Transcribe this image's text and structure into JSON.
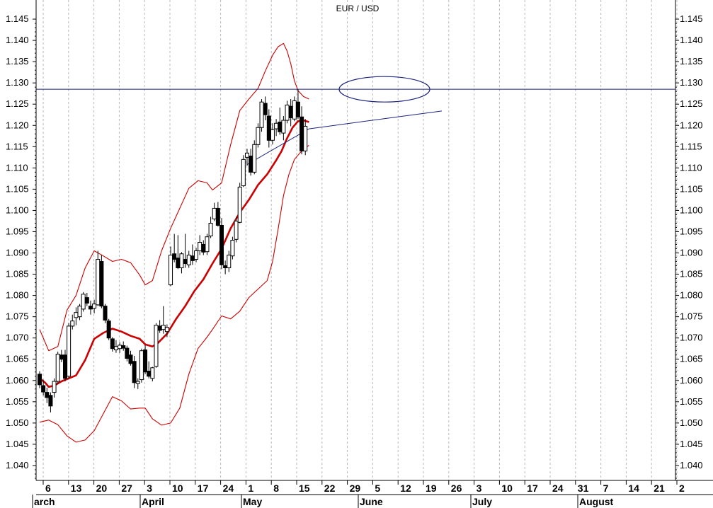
{
  "chart_data": {
    "type": "candlestick",
    "title": "EUR / USD",
    "ylim": [
      1.0365,
      1.1495
    ],
    "y_ticks": [
      "1.040",
      "1.045",
      "1.050",
      "1.055",
      "1.060",
      "1.065",
      "1.070",
      "1.075",
      "1.080",
      "1.085",
      "1.090",
      "1.095",
      "1.100",
      "1.105",
      "1.110",
      "1.115",
      "1.120",
      "1.125",
      "1.130",
      "1.135",
      "1.140",
      "1.145"
    ],
    "x_tick_labels": [
      "6",
      "13",
      "20",
      "27",
      "3",
      "10",
      "17",
      "24",
      "1",
      "8",
      "15",
      "22",
      "29",
      "5",
      "12",
      "19",
      "26",
      "3",
      "10",
      "17",
      "24",
      "31",
      "7",
      "14",
      "21",
      "2"
    ],
    "month_labels": [
      "arch",
      "April",
      "May",
      "June",
      "July",
      "August"
    ],
    "grid": "vertical dotted, weekly",
    "resistance_level": 1.1285,
    "series": [
      {
        "name": "",
        "role": "moving-average",
        "color": "#cc0000",
        "points": [
          [
            0,
            1.0605
          ],
          [
            3,
            1.0595
          ],
          [
            5,
            1.0585
          ],
          [
            8,
            1.0588
          ],
          [
            12,
            1.0598
          ],
          [
            20,
            1.0612
          ],
          [
            25,
            1.0648
          ],
          [
            30,
            1.0698
          ],
          [
            35,
            1.0712
          ],
          [
            40,
            1.0722
          ],
          [
            45,
            1.0715
          ],
          [
            50,
            1.0705
          ],
          [
            55,
            1.0698
          ],
          [
            58,
            1.0685
          ],
          [
            62,
            1.068
          ],
          [
            65,
            1.0688
          ],
          [
            70,
            1.071
          ],
          [
            75,
            1.0745
          ],
          [
            80,
            1.0775
          ],
          [
            85,
            1.081
          ],
          [
            90,
            1.0838
          ],
          [
            95,
            1.0875
          ],
          [
            100,
            1.091
          ],
          [
            105,
            1.0958
          ],
          [
            110,
            1.0995
          ],
          [
            115,
            1.1025
          ],
          [
            120,
            1.106
          ],
          [
            125,
            1.1085
          ],
          [
            130,
            1.1118
          ],
          [
            133,
            1.114
          ],
          [
            136,
            1.117
          ],
          [
            139,
            1.1195
          ],
          [
            142,
            1.121
          ],
          [
            145,
            1.1212
          ],
          [
            148,
            1.1208
          ]
        ]
      },
      {
        "name": "",
        "role": "bollinger-upper",
        "color": "#cc0000",
        "points": [
          [
            0,
            1.072
          ],
          [
            5,
            1.067
          ],
          [
            10,
            1.068
          ],
          [
            15,
            1.0765
          ],
          [
            20,
            1.08
          ],
          [
            25,
            1.0865
          ],
          [
            30,
            1.0905
          ],
          [
            35,
            1.0893
          ],
          [
            40,
            1.088
          ],
          [
            45,
            1.0885
          ],
          [
            50,
            1.0877
          ],
          [
            55,
            1.0848
          ],
          [
            58,
            1.0825
          ],
          [
            62,
            1.0835
          ],
          [
            67,
            1.0905
          ],
          [
            72,
            1.0958
          ],
          [
            77,
            1.1005
          ],
          [
            82,
            1.1052
          ],
          [
            87,
            1.107
          ],
          [
            92,
            1.1065
          ],
          [
            95,
            1.1048
          ],
          [
            100,
            1.1065
          ],
          [
            105,
            1.1155
          ],
          [
            110,
            1.1235
          ],
          [
            115,
            1.1262
          ],
          [
            120,
            1.1287
          ],
          [
            124,
            1.1328
          ],
          [
            128,
            1.1365
          ],
          [
            131,
            1.1385
          ],
          [
            134,
            1.1393
          ],
          [
            136,
            1.1375
          ],
          [
            138,
            1.1345
          ],
          [
            140,
            1.1305
          ],
          [
            142,
            1.1282
          ],
          [
            145,
            1.1268
          ],
          [
            148,
            1.1262
          ]
        ]
      },
      {
        "name": "",
        "role": "bollinger-lower",
        "color": "#cc0000",
        "points": [
          [
            0,
            1.0502
          ],
          [
            5,
            1.0507
          ],
          [
            10,
            1.0496
          ],
          [
            15,
            1.047
          ],
          [
            20,
            1.0455
          ],
          [
            25,
            1.046
          ],
          [
            30,
            1.0482
          ],
          [
            35,
            1.0522
          ],
          [
            40,
            1.0562
          ],
          [
            45,
            1.0552
          ],
          [
            50,
            1.0533
          ],
          [
            55,
            1.0535
          ],
          [
            58,
            1.0535
          ],
          [
            62,
            1.051
          ],
          [
            67,
            1.0495
          ],
          [
            72,
            1.05
          ],
          [
            77,
            1.0535
          ],
          [
            82,
            1.0615
          ],
          [
            87,
            1.0675
          ],
          [
            92,
            1.0702
          ],
          [
            95,
            1.072
          ],
          [
            100,
            1.0752
          ],
          [
            105,
            1.0745
          ],
          [
            110,
            1.0763
          ],
          [
            115,
            1.0795
          ],
          [
            120,
            1.0815
          ],
          [
            125,
            1.0835
          ],
          [
            128,
            1.088
          ],
          [
            131,
            1.0955
          ],
          [
            134,
            1.1035
          ],
          [
            137,
            1.1085
          ],
          [
            140,
            1.112
          ],
          [
            143,
            1.1135
          ],
          [
            146,
            1.1148
          ],
          [
            148,
            1.1153
          ]
        ]
      },
      {
        "name": "",
        "role": "price-candles",
        "candles": [
          [
            0,
            1.0615,
            1.0622,
            1.0582,
            1.059
          ],
          [
            2,
            1.0588,
            1.0602,
            1.0565,
            1.0573
          ],
          [
            4,
            1.0572,
            1.0583,
            1.0547,
            1.056
          ],
          [
            6,
            1.0565,
            1.0572,
            1.0525,
            1.054
          ],
          [
            8,
            1.0572,
            1.0605,
            1.056,
            1.0598
          ],
          [
            10,
            1.0598,
            1.0668,
            1.0592,
            1.0662
          ],
          [
            12,
            1.066,
            1.0672,
            1.0643,
            1.065
          ],
          [
            14,
            1.066,
            1.0672,
            1.0598,
            1.0605
          ],
          [
            16,
            1.061,
            1.0735,
            1.0605,
            1.0728
          ],
          [
            18,
            1.0728,
            1.0755,
            1.072,
            1.074
          ],
          [
            20,
            1.0748,
            1.0772,
            1.073,
            1.076
          ],
          [
            22,
            1.075,
            1.078,
            1.0742,
            1.0775
          ],
          [
            24,
            1.0768,
            1.0808,
            1.0762,
            1.0803
          ],
          [
            26,
            1.0795,
            1.0806,
            1.0775,
            1.0782
          ],
          [
            28,
            1.0775,
            1.0788,
            1.0755,
            1.0768
          ],
          [
            30,
            1.077,
            1.079,
            1.0758,
            1.078
          ],
          [
            32,
            1.0778,
            1.0905,
            1.0775,
            1.0885
          ],
          [
            34,
            1.088,
            1.0895,
            1.077,
            1.0775
          ],
          [
            36,
            1.0775,
            1.078,
            1.0735,
            1.0742
          ],
          [
            38,
            1.074,
            1.0745,
            1.0695,
            1.07
          ],
          [
            40,
            1.0698,
            1.0702,
            1.0668,
            1.0675
          ],
          [
            42,
            1.0672,
            1.0695,
            1.0665,
            1.068
          ],
          [
            44,
            1.0675,
            1.069,
            1.0665,
            1.0683
          ],
          [
            46,
            1.0682,
            1.0692,
            1.067,
            1.0676
          ],
          [
            48,
            1.0676,
            1.0682,
            1.0645,
            1.0652
          ],
          [
            50,
            1.066,
            1.067,
            1.0635,
            1.064
          ],
          [
            52,
            1.0645,
            1.0658,
            1.0582,
            1.0595
          ],
          [
            54,
            1.0593,
            1.0605,
            1.058,
            1.0598
          ],
          [
            56,
            1.0602,
            1.0675,
            1.0595,
            1.067
          ],
          [
            58,
            1.0672,
            1.0683,
            1.0615,
            1.062
          ],
          [
            60,
            1.0622,
            1.0645,
            1.0605,
            1.061
          ],
          [
            62,
            1.0605,
            1.0632,
            1.0598,
            1.063
          ],
          [
            64,
            1.0633,
            1.0735,
            1.063,
            1.073
          ],
          [
            66,
            1.0728,
            1.0742,
            1.0712,
            1.0718
          ],
          [
            68,
            1.072,
            1.0775,
            1.071,
            1.073
          ],
          [
            70,
            1.0715,
            1.0732,
            1.0702,
            1.0725
          ],
          [
            72,
            1.0825,
            1.0915,
            1.0822,
            1.0895
          ],
          [
            74,
            1.0898,
            1.0945,
            1.0878,
            1.0885
          ],
          [
            76,
            1.0888,
            1.0942,
            1.0862,
            1.0865
          ],
          [
            78,
            1.0865,
            1.0902,
            1.0852,
            1.0898
          ],
          [
            80,
            1.0885,
            1.0945,
            1.0865,
            1.0875
          ],
          [
            82,
            1.0872,
            1.0905,
            1.0865,
            1.0895
          ],
          [
            84,
            1.0893,
            1.092,
            1.0872,
            1.0882
          ],
          [
            86,
            1.0885,
            1.0912,
            1.0878,
            1.0905
          ],
          [
            88,
            1.0905,
            1.0942,
            1.0895,
            1.0925
          ],
          [
            90,
            1.092,
            1.093,
            1.0895,
            1.0902
          ],
          [
            92,
            1.0903,
            1.0945,
            1.0895,
            1.0938
          ],
          [
            94,
            1.094,
            1.0985,
            1.0935,
            1.097
          ],
          [
            96,
            1.098,
            1.1018,
            1.0975,
            1.1005
          ],
          [
            98,
            1.1005,
            1.102,
            1.0962,
            1.0965
          ],
          [
            100,
            1.0965,
            1.0982,
            1.0862,
            1.0872
          ],
          [
            102,
            1.087,
            1.0882,
            1.085,
            1.0865
          ],
          [
            104,
            1.0865,
            1.0905,
            1.0855,
            1.0895
          ],
          [
            106,
            1.0893,
            1.0938,
            1.0885,
            1.093
          ],
          [
            108,
            1.0932,
            1.0985,
            1.0925,
            1.0975
          ],
          [
            110,
            1.0972,
            1.1065,
            1.097,
            1.1055
          ],
          [
            112,
            1.1058,
            1.113,
            1.1055,
            1.112
          ],
          [
            114,
            1.1125,
            1.1145,
            1.1105,
            1.1135
          ],
          [
            116,
            1.1128,
            1.1145,
            1.1082,
            1.109
          ],
          [
            118,
            1.109,
            1.1165,
            1.1085,
            1.1155
          ],
          [
            120,
            1.1155,
            1.1205,
            1.1148,
            1.1195
          ],
          [
            122,
            1.1195,
            1.1262,
            1.1185,
            1.1255
          ],
          [
            124,
            1.1252,
            1.1268,
            1.1212,
            1.1225
          ],
          [
            126,
            1.1222,
            1.1238,
            1.1148,
            1.1165
          ],
          [
            128,
            1.1165,
            1.1205,
            1.1155,
            1.119
          ],
          [
            130,
            1.1192,
            1.1215,
            1.1175,
            1.1205
          ],
          [
            132,
            1.1208,
            1.1242,
            1.1178,
            1.1185
          ],
          [
            134,
            1.1182,
            1.1222,
            1.1165,
            1.1212
          ],
          [
            136,
            1.1212,
            1.1258,
            1.1205,
            1.1248
          ],
          [
            138,
            1.1245,
            1.1262,
            1.1198,
            1.1218
          ],
          [
            140,
            1.1215,
            1.1268,
            1.121,
            1.1258
          ],
          [
            142,
            1.1255,
            1.1285,
            1.1215,
            1.122
          ],
          [
            144,
            1.122,
            1.1245,
            1.1132,
            1.114
          ],
          [
            146,
            1.114,
            1.1215,
            1.113,
            1.1198
          ]
        ]
      }
    ]
  }
}
